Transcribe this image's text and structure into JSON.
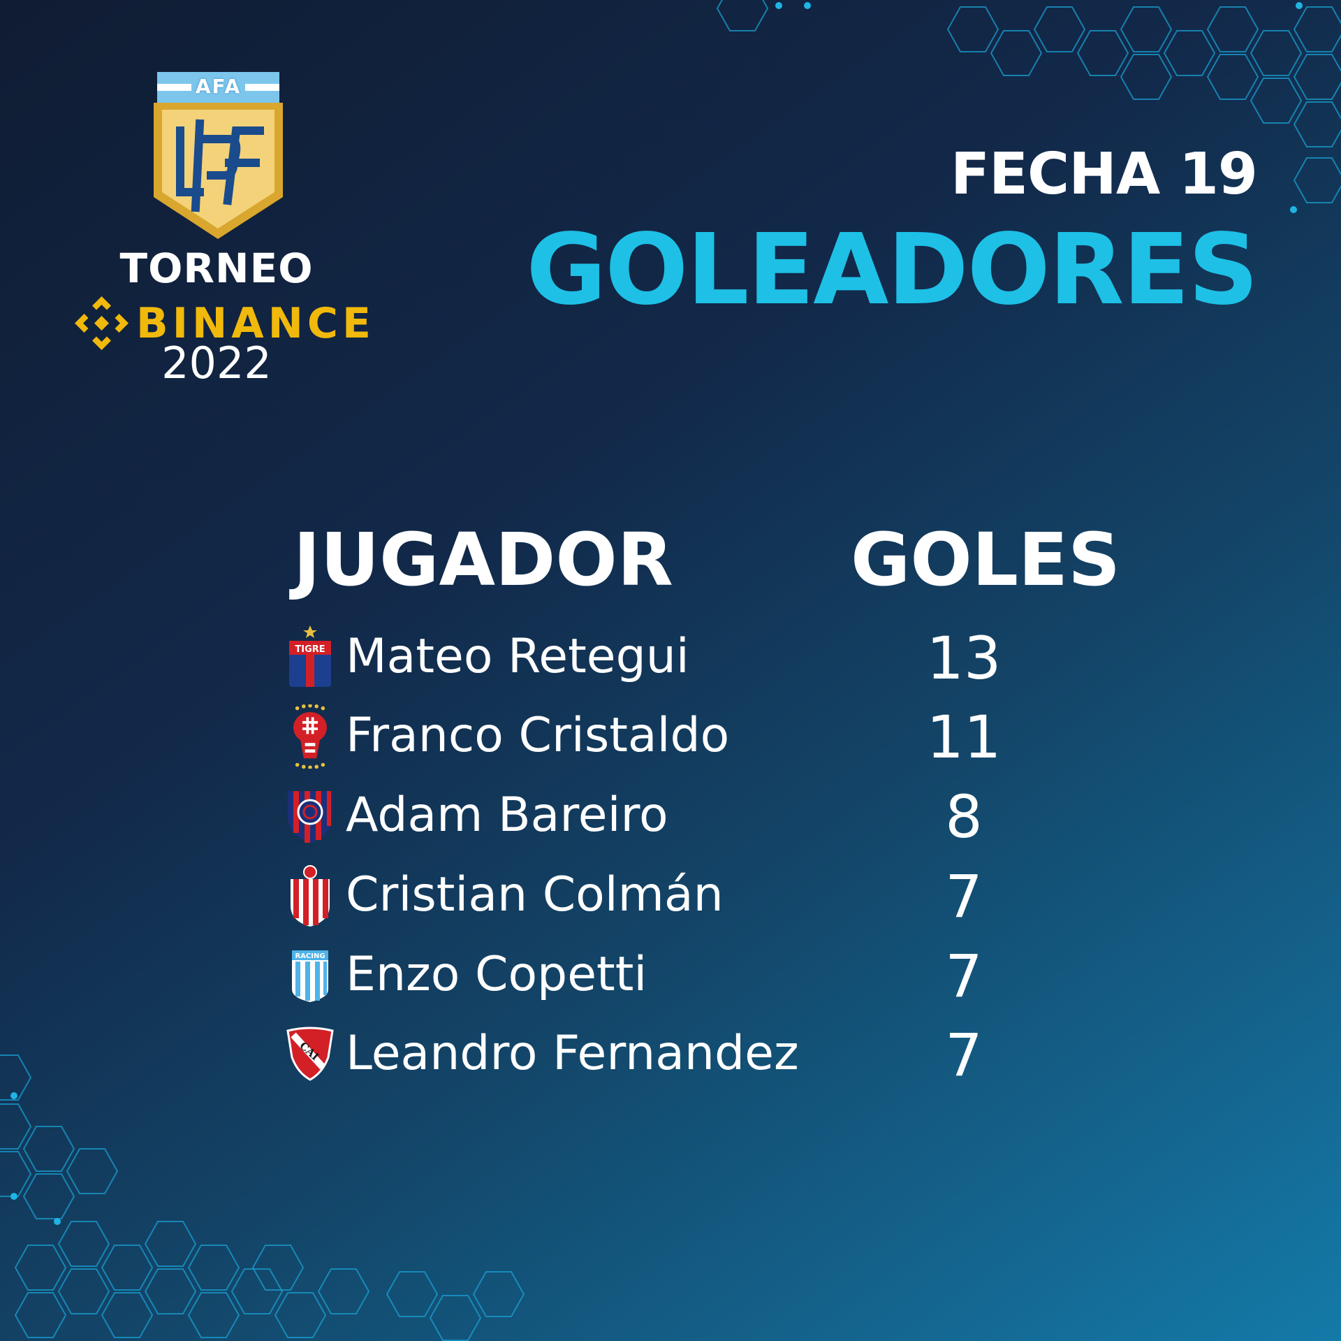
{
  "logo": {
    "afa": "AFA",
    "torneo": "TORNEO",
    "binance": "BINANCE",
    "year": "2022",
    "colors": {
      "gold": "#f0b90b",
      "shield_gold": "#d9a62e",
      "shield_fill": "#f3d27a",
      "blue": "#1a4b8c"
    }
  },
  "header": {
    "fecha": "FECHA 19",
    "title": "GOLEADORES"
  },
  "table": {
    "columns": {
      "player": "JUGADOR",
      "goals": "GOLES"
    },
    "rows": [
      {
        "name": "Mateo Retegui",
        "goals": "13",
        "crest_icon": "tigre-crest-icon"
      },
      {
        "name": "Franco Cristaldo",
        "goals": "11",
        "crest_icon": "huracan-crest-icon"
      },
      {
        "name": "Adam Bareiro",
        "goals": "8",
        "crest_icon": "san-lorenzo-crest-icon"
      },
      {
        "name": "Cristian Colmán",
        "goals": "7",
        "crest_icon": "barracas-central-crest-icon"
      },
      {
        "name": "Enzo Copetti",
        "goals": "7",
        "crest_icon": "racing-crest-icon"
      },
      {
        "name": "Leandro Fernandez",
        "goals": "7",
        "crest_icon": "independiente-crest-icon"
      }
    ]
  },
  "crest_text": {
    "tigre": "TIGRE",
    "racing": "RACING",
    "independiente": "CAI"
  },
  "theme": {
    "accent": "#1ec0e6",
    "background_dark": "#101c33",
    "background_light": "#147aa8"
  }
}
